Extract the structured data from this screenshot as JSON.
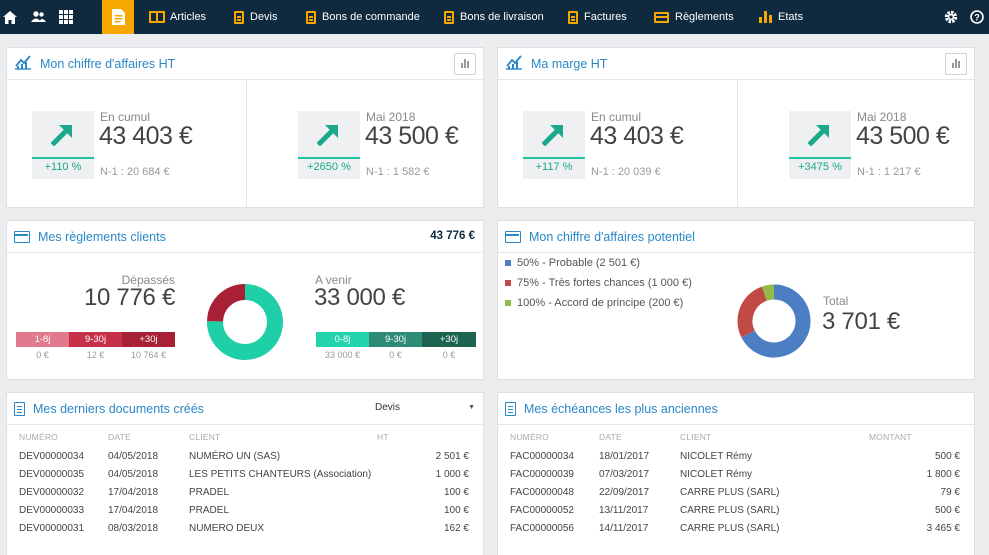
{
  "nav": {
    "items": [
      {
        "label": "Articles"
      },
      {
        "label": "Devis"
      },
      {
        "label": "Bons de commande"
      },
      {
        "label": "Bons de livraison"
      },
      {
        "label": "Factures"
      },
      {
        "label": "Règlements"
      },
      {
        "label": "Etats"
      }
    ],
    "icons": [
      "home-icon",
      "users-icon",
      "apps-grid-icon",
      "documents-icon",
      "settings-icon",
      "help-icon"
    ]
  },
  "ca": {
    "title": "Mon chiffre d'affaires HT",
    "cumul": {
      "label": "En cumul",
      "value": "43 403 €",
      "pct": "+110 %",
      "n1": "N-1 : 20 684 €"
    },
    "month": {
      "label": "Mai 2018",
      "value": "43 500 €",
      "pct": "+2650 %",
      "n1": "N-1 : 1 582 €"
    }
  },
  "marge": {
    "title": "Ma marge HT",
    "cumul": {
      "label": "En cumul",
      "value": "43 403 €",
      "pct": "+117 %",
      "n1": "N-1 : 20 039 €"
    },
    "month": {
      "label": "Mai 2018",
      "value": "43 500 €",
      "pct": "+3475 %",
      "n1": "N-1 : 1 217 €"
    }
  },
  "reglements": {
    "title": "Mes règlements clients",
    "total": "43 776 €",
    "depasses": {
      "label": "Dépassés",
      "value": "10 776 €",
      "buckets": [
        {
          "label": "1-8j",
          "value": "0 €"
        },
        {
          "label": "9-30j",
          "value": "12 €"
        },
        {
          "label": "+30j",
          "value": "10 764 €"
        }
      ]
    },
    "avenir": {
      "label": "A venir",
      "value": "33 000 €",
      "buckets": [
        {
          "label": "0-8j",
          "value": "33 000 €"
        },
        {
          "label": "9-30j",
          "value": "0 €"
        },
        {
          "label": "+30j",
          "value": "0 €"
        }
      ]
    },
    "donut": {
      "overdue": 10776,
      "upcoming": 33000
    },
    "colors": {
      "overdue": "#a82035",
      "upcoming": "#1fcfa8"
    }
  },
  "potentiel": {
    "title": "Mon chiffre d'affaires potentiel",
    "legend": [
      {
        "label": "50% - Probable (2 501 €)",
        "color": "#4b7ec3",
        "value": 2501
      },
      {
        "label": "75% - Très fortes chances (1 000 €)",
        "color": "#c14a45",
        "value": 1000
      },
      {
        "label": "100% - Accord de principe (200 €)",
        "color": "#93bb4a",
        "value": 200
      }
    ],
    "total_label": "Total",
    "total_value": "3 701 €"
  },
  "docs": {
    "title": "Mes derniers documents créés",
    "filter": "Devis",
    "headers": [
      "NUMÉRO",
      "DATE",
      "CLIENT",
      "HT"
    ],
    "rows": [
      [
        "DEV00000034",
        "04/05/2018",
        "NUMÉRO UN (SAS)",
        "2 501 €"
      ],
      [
        "DEV00000035",
        "04/05/2018",
        "LES PETITS CHANTEURS (Association)",
        "1 000 €"
      ],
      [
        "DEV00000032",
        "17/04/2018",
        "PRADEL",
        "100 €"
      ],
      [
        "DEV00000033",
        "17/04/2018",
        "PRADEL",
        "100 €"
      ],
      [
        "DEV00000031",
        "08/03/2018",
        "NUMERO DEUX",
        "162 €"
      ]
    ]
  },
  "echeances": {
    "title": "Mes échéances les plus anciennes",
    "headers": [
      "NUMÉRO",
      "DATE",
      "CLIENT",
      "MONTANT"
    ],
    "rows": [
      [
        "FAC00000034",
        "18/01/2017",
        "NICOLET Rémy",
        "500 €"
      ],
      [
        "FAC00000039",
        "07/03/2017",
        "NICOLET Rémy",
        "1 800 €"
      ],
      [
        "FAC00000048",
        "22/09/2017",
        "CARRE PLUS (SARL)",
        "79 €"
      ],
      [
        "FAC00000052",
        "13/11/2017",
        "CARRE PLUS (SARL)",
        "500 €"
      ],
      [
        "FAC00000056",
        "14/11/2017",
        "CARRE PLUS (SARL)",
        "3 465 €"
      ]
    ]
  }
}
